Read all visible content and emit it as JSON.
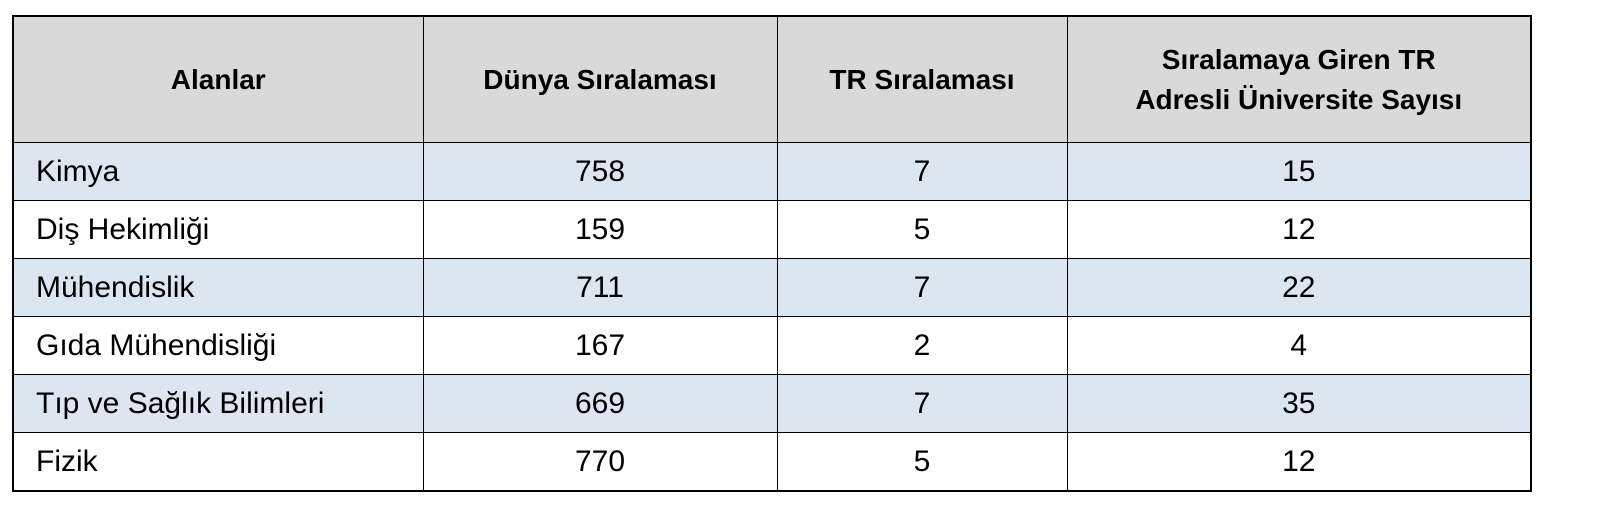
{
  "table": {
    "header": [
      "Alanlar",
      "Dünya Sıralaması",
      "TR Sıralaması",
      "Sıralamaya Giren TR Adresli Üniversite Sayısı"
    ],
    "rows": [
      [
        "Kimya",
        758,
        7,
        15
      ],
      [
        "Diş Hekimliği",
        159,
        5,
        12
      ],
      [
        "Mühendislik",
        711,
        7,
        22
      ],
      [
        "Gıda Mühendisliği",
        167,
        2,
        4
      ],
      [
        "Tıp ve Sağlık Bilimleri",
        669,
        7,
        35
      ],
      [
        "Fizik",
        770,
        5,
        12
      ]
    ]
  }
}
